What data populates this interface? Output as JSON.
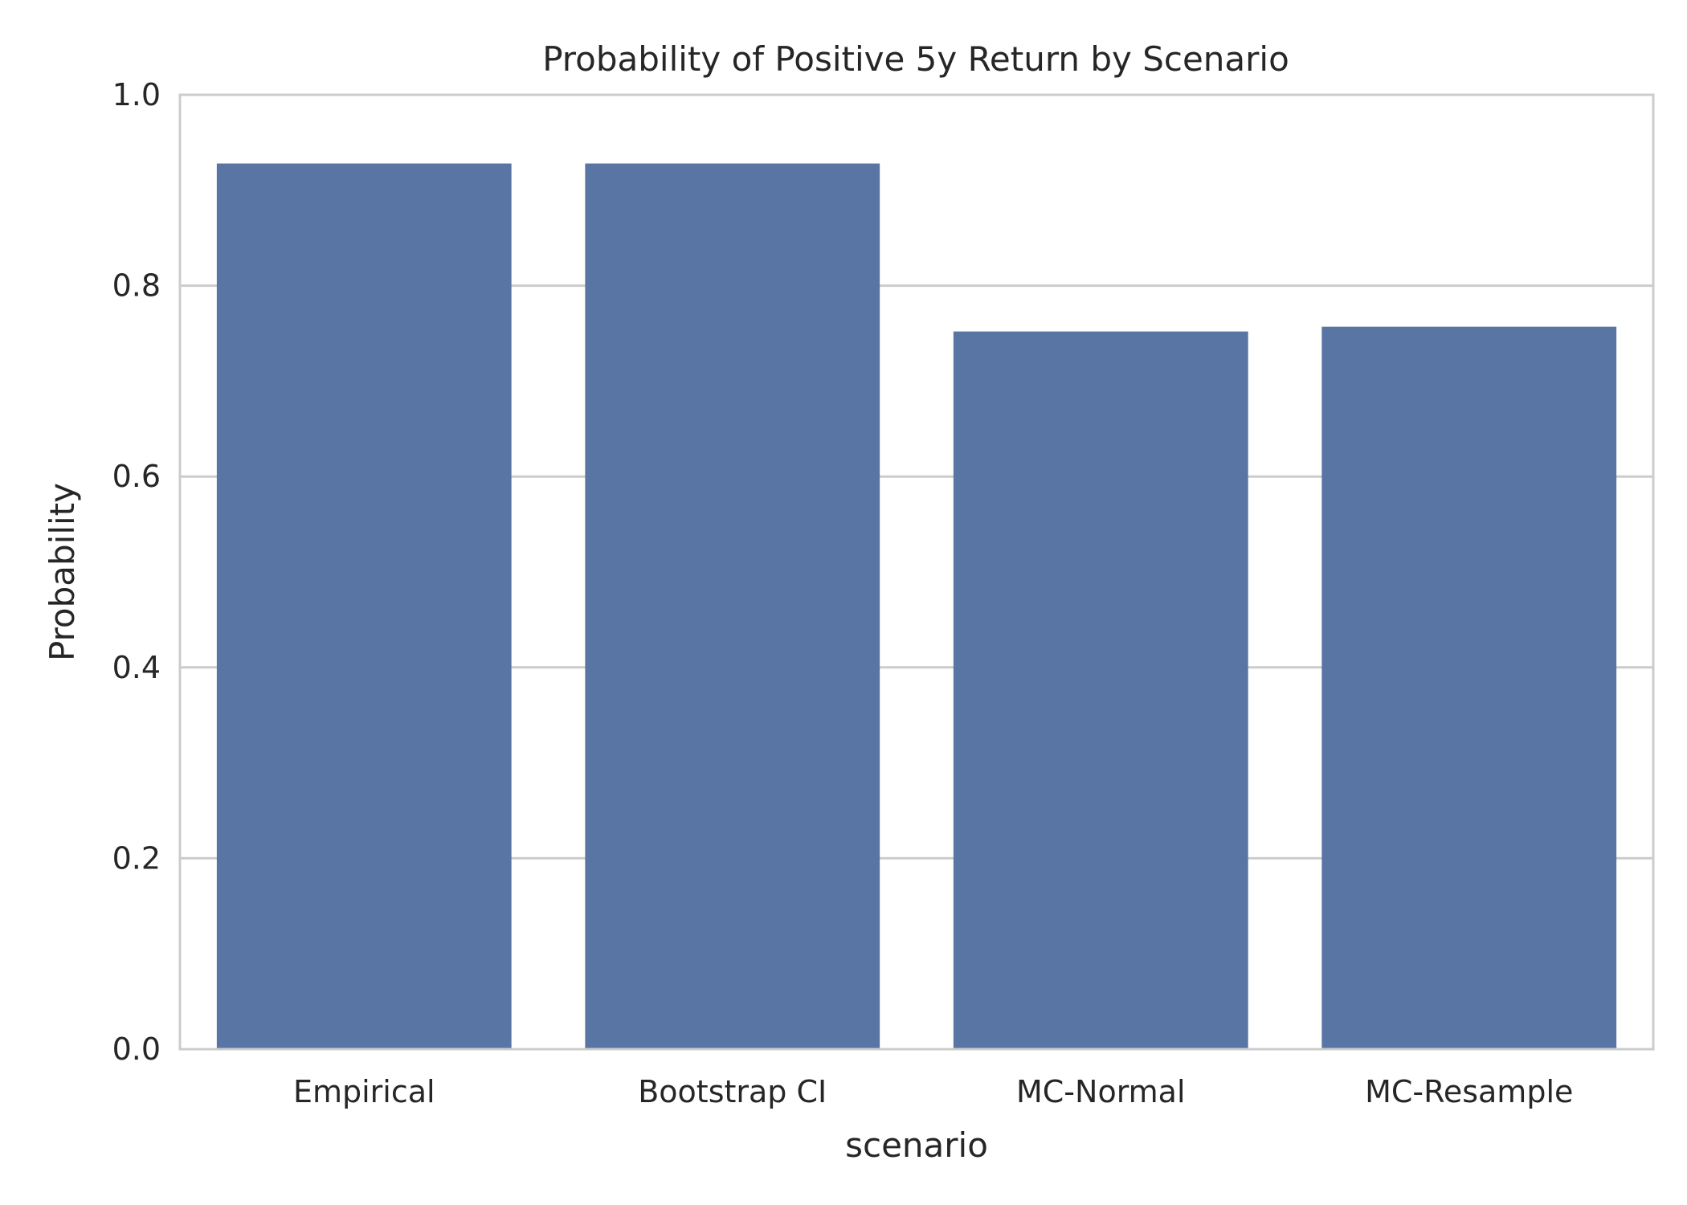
{
  "chart_data": {
    "type": "bar",
    "title": "Probability of Positive 5y Return by Scenario",
    "xlabel": "scenario",
    "ylabel": "Probability",
    "categories": [
      "Empirical",
      "Bootstrap CI",
      "MC-Normal",
      "MC-Resample"
    ],
    "values": [
      0.928,
      0.928,
      0.752,
      0.757
    ],
    "ylim": [
      0,
      1.0
    ],
    "yticks": [
      "0.0",
      "0.2",
      "0.4",
      "0.6",
      "0.8",
      "1.0"
    ],
    "grid": true,
    "legend": "none"
  },
  "colors": {
    "bar": "#5975a4",
    "grid": "#cccccc",
    "frame": "#cccccc",
    "text": "#262626",
    "background": "#ffffff"
  }
}
